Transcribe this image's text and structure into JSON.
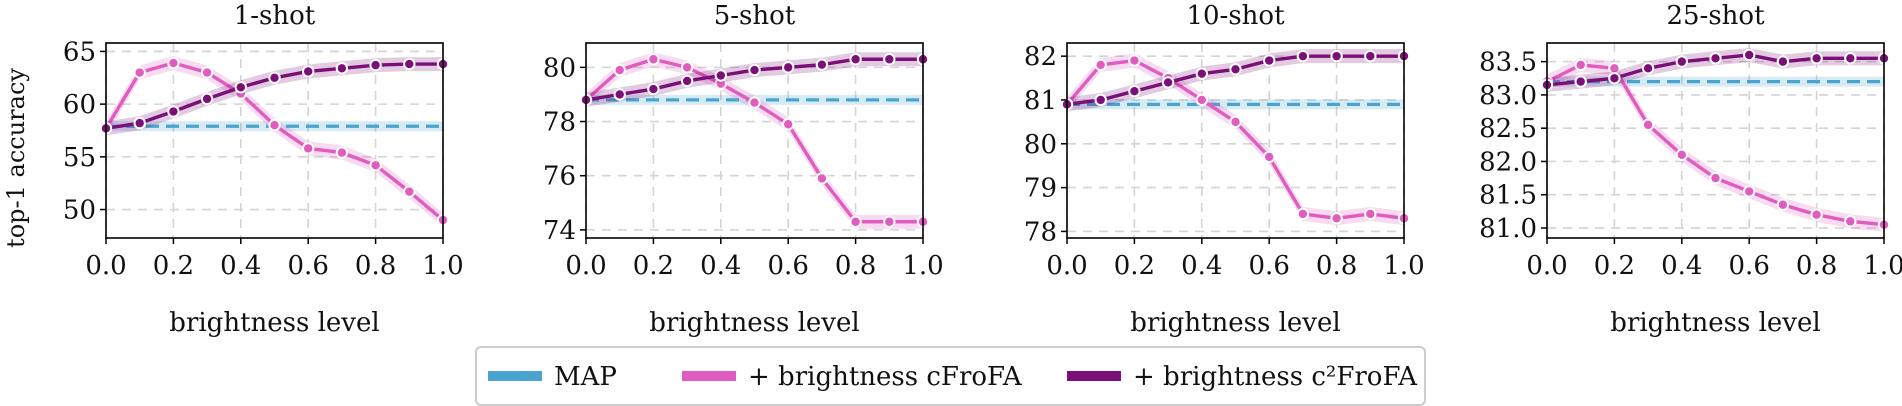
{
  "chart_data": [
    {
      "type": "line",
      "title": "1-shot",
      "xlabel": "brightness level",
      "ylabel": "top-1 accuracy",
      "xlim": [
        0.0,
        1.0
      ],
      "ylim": [
        47.3,
        65.8
      ],
      "xticks": [
        0.0,
        0.2,
        0.4,
        0.6,
        0.8,
        1.0
      ],
      "xtick_labels": [
        "0.0",
        "0.2",
        "0.4",
        "0.6",
        "0.8",
        "1.0"
      ],
      "yticks": [
        50,
        55,
        60,
        65
      ],
      "ytick_labels": [
        "50",
        "55",
        "60",
        "65"
      ],
      "x": [
        0.0,
        0.1,
        0.2,
        0.3,
        0.4,
        0.5,
        0.6,
        0.7,
        0.8,
        0.9,
        1.0
      ],
      "series": [
        {
          "name": "MAP",
          "values": [
            57.9,
            57.9,
            57.9,
            57.9,
            57.9,
            57.9,
            57.9,
            57.9,
            57.9,
            57.9,
            57.9
          ]
        },
        {
          "name": "+ brightness cFroFA",
          "values": [
            57.7,
            63.0,
            63.9,
            63.0,
            61.0,
            58.0,
            55.8,
            55.4,
            54.2,
            51.7,
            49.0
          ]
        },
        {
          "name": "+ brightness c2FroFA",
          "values": [
            57.7,
            58.2,
            59.3,
            60.5,
            61.6,
            62.5,
            63.1,
            63.4,
            63.7,
            63.8,
            63.8
          ]
        }
      ]
    },
    {
      "type": "line",
      "title": "5-shot",
      "xlabel": "brightness level",
      "ylabel": "",
      "xlim": [
        0.0,
        1.0
      ],
      "ylim": [
        73.7,
        80.9
      ],
      "xticks": [
        0.0,
        0.2,
        0.4,
        0.6,
        0.8,
        1.0
      ],
      "xtick_labels": [
        "0.0",
        "0.2",
        "0.4",
        "0.6",
        "0.8",
        "1.0"
      ],
      "yticks": [
        74,
        76,
        78,
        80
      ],
      "ytick_labels": [
        "74",
        "76",
        "78",
        "80"
      ],
      "x": [
        0.0,
        0.1,
        0.2,
        0.3,
        0.4,
        0.5,
        0.6,
        0.7,
        0.8,
        0.9,
        1.0
      ],
      "series": [
        {
          "name": "MAP",
          "values": [
            78.8,
            78.8,
            78.8,
            78.8,
            78.8,
            78.8,
            78.8,
            78.8,
            78.8,
            78.8,
            78.8
          ]
        },
        {
          "name": "+ brightness cFroFA",
          "values": [
            78.8,
            79.9,
            80.3,
            80.0,
            79.4,
            78.7,
            77.9,
            75.9,
            74.3,
            74.3,
            74.3
          ]
        },
        {
          "name": "+ brightness c2FroFA",
          "values": [
            78.8,
            79.0,
            79.2,
            79.5,
            79.7,
            79.9,
            80.0,
            80.1,
            80.3,
            80.3,
            80.3
          ]
        }
      ]
    },
    {
      "type": "line",
      "title": "10-shot",
      "xlabel": "brightness level",
      "ylabel": "",
      "xlim": [
        0.0,
        1.0
      ],
      "ylim": [
        77.85,
        82.3
      ],
      "xticks": [
        0.0,
        0.2,
        0.4,
        0.6,
        0.8,
        1.0
      ],
      "xtick_labels": [
        "0.0",
        "0.2",
        "0.4",
        "0.6",
        "0.8",
        "1.0"
      ],
      "yticks": [
        78,
        79,
        80,
        81,
        82
      ],
      "ytick_labels": [
        "78",
        "79",
        "80",
        "81",
        "82"
      ],
      "x": [
        0.0,
        0.1,
        0.2,
        0.3,
        0.4,
        0.5,
        0.6,
        0.7,
        0.8,
        0.9,
        1.0
      ],
      "series": [
        {
          "name": "MAP",
          "values": [
            80.9,
            80.9,
            80.9,
            80.9,
            80.9,
            80.9,
            80.9,
            80.9,
            80.9,
            80.9,
            80.9
          ]
        },
        {
          "name": "+ brightness cFroFA",
          "values": [
            80.9,
            81.8,
            81.9,
            81.5,
            81.0,
            80.5,
            79.7,
            78.4,
            78.3,
            78.4,
            78.3
          ]
        },
        {
          "name": "+ brightness c2FroFA",
          "values": [
            80.9,
            81.0,
            81.2,
            81.4,
            81.6,
            81.7,
            81.9,
            82.0,
            82.0,
            82.0,
            82.0
          ]
        }
      ]
    },
    {
      "type": "line",
      "title": "25-shot",
      "xlabel": "brightness level",
      "ylabel": "",
      "xlim": [
        0.0,
        1.0
      ],
      "ylim": [
        80.85,
        83.78
      ],
      "xticks": [
        0.0,
        0.2,
        0.4,
        0.6,
        0.8,
        1.0
      ],
      "xtick_labels": [
        "0.0",
        "0.2",
        "0.4",
        "0.6",
        "0.8",
        "1.0"
      ],
      "yticks": [
        81.0,
        81.5,
        82.0,
        82.5,
        83.0,
        83.5
      ],
      "ytick_labels": [
        "81.0",
        "81.5",
        "82.0",
        "82.5",
        "83.0",
        "83.5"
      ],
      "x": [
        0.0,
        0.1,
        0.2,
        0.3,
        0.4,
        0.5,
        0.6,
        0.7,
        0.8,
        0.9,
        1.0
      ],
      "series": [
        {
          "name": "MAP",
          "values": [
            83.2,
            83.2,
            83.2,
            83.2,
            83.2,
            83.2,
            83.2,
            83.2,
            83.2,
            83.2,
            83.2
          ]
        },
        {
          "name": "+ brightness cFroFA",
          "values": [
            83.2,
            83.45,
            83.4,
            82.55,
            82.1,
            81.75,
            81.55,
            81.35,
            81.2,
            81.1,
            81.05
          ]
        },
        {
          "name": "+ brightness c2FroFA",
          "values": [
            83.15,
            83.2,
            83.25,
            83.4,
            83.5,
            83.55,
            83.6,
            83.5,
            83.55,
            83.55,
            83.55
          ]
        }
      ]
    }
  ],
  "legend": {
    "position": "bottom-center",
    "entries": [
      {
        "label": "MAP",
        "color": "#4ba3cf"
      },
      {
        "label": "+ brightness cFroFA",
        "color": "#e05cbf"
      },
      {
        "label": "+ brightness c²FroFA",
        "color": "#7a0f78"
      }
    ]
  },
  "colors": {
    "map": "#4ba3cf",
    "cfrofa": "#e05cbf",
    "c2frofa": "#7a0f78"
  }
}
